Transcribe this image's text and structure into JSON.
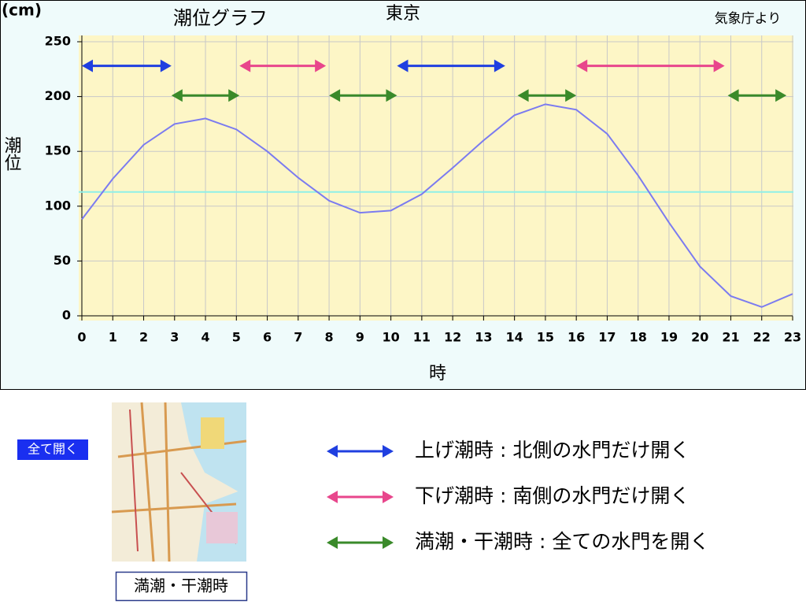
{
  "chart_data": {
    "type": "line",
    "title": "潮位グラフ",
    "subtitle": "東京",
    "source": "気象庁より",
    "y_unit": "(cm)",
    "ylabel": "潮位",
    "xlabel": "時",
    "x": [
      0,
      1,
      2,
      3,
      4,
      5,
      6,
      7,
      8,
      9,
      10,
      11,
      12,
      13,
      14,
      15,
      16,
      17,
      18,
      19,
      20,
      21,
      22,
      23
    ],
    "series": [
      {
        "color": "#7b7bf0",
        "values": [
          88,
          125,
          156,
          175,
          180,
          170,
          150,
          126,
          105,
          94,
          96,
          111,
          135,
          160,
          183,
          193,
          188,
          166,
          128,
          85,
          45,
          18,
          8,
          20
        ]
      }
    ],
    "xlim": [
      0,
      23
    ],
    "xticks": [
      0,
      1,
      2,
      3,
      4,
      5,
      6,
      7,
      8,
      9,
      10,
      11,
      12,
      13,
      14,
      15,
      16,
      17,
      18,
      19,
      20,
      21,
      22,
      23
    ],
    "ylim": [
      0,
      250
    ],
    "yticks": [
      0,
      50,
      100,
      150,
      200,
      250
    ],
    "grid": true,
    "hline": {
      "value": 113,
      "color": "#8ff0e8"
    },
    "arrows": [
      {
        "start": 0,
        "end": 2.9,
        "y": 228,
        "color": "#1f3fe0"
      },
      {
        "start": 2.9,
        "end": 5.1,
        "y": 201,
        "color": "#3a8a2a"
      },
      {
        "start": 5.1,
        "end": 7.9,
        "y": 228,
        "color": "#e8468c"
      },
      {
        "start": 8,
        "end": 10.2,
        "y": 201,
        "color": "#3a8a2a"
      },
      {
        "start": 10.2,
        "end": 13.7,
        "y": 228,
        "color": "#1f3fe0"
      },
      {
        "start": 14.1,
        "end": 16,
        "y": 201,
        "color": "#3a8a2a"
      },
      {
        "start": 16,
        "end": 20.8,
        "y": 228,
        "color": "#e8468c"
      },
      {
        "start": 20.9,
        "end": 22.8,
        "y": 201,
        "color": "#3a8a2a"
      }
    ]
  },
  "button": {
    "label": "全て開く"
  },
  "map": {
    "caption": "満潮・干潮時"
  },
  "legend": [
    {
      "label": "上げ潮時 : 北側の水門だけ開く",
      "color": "#1f3fe0"
    },
    {
      "label": "下げ潮時 : 南側の水門だけ開く",
      "color": "#e8468c"
    },
    {
      "label": "満潮・干潮時 : 全ての水門を開く",
      "color": "#3a8a2a"
    }
  ]
}
